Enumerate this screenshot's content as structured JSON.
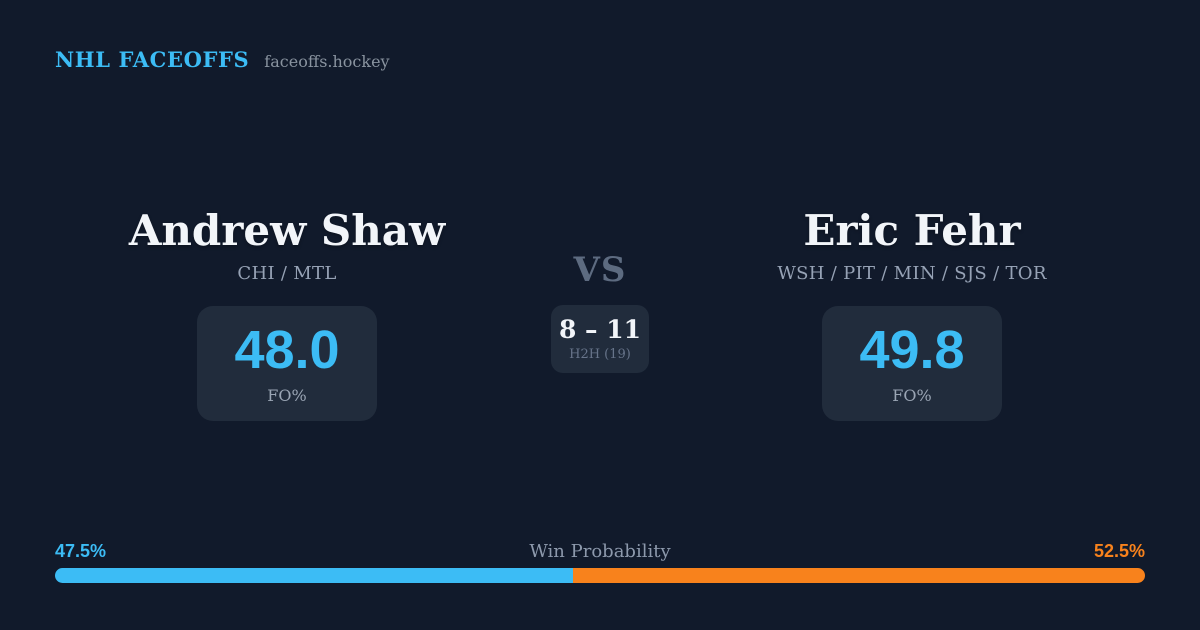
{
  "header": {
    "brand": "NHL FACEOFFS",
    "site": "faceoffs.hockey",
    "brand_color": "#3cbcf5"
  },
  "matchup": {
    "vs": "VS",
    "h2h": {
      "score": "8 – 11",
      "label": "H2H (19)"
    },
    "player_left": {
      "name": "Andrew Shaw",
      "teams": "CHI / MTL",
      "fo_pct": "48.0",
      "fo_label": "FO%"
    },
    "player_right": {
      "name": "Eric Fehr",
      "teams": "WSH / PIT / MIN / SJS / TOR",
      "fo_pct": "49.8",
      "fo_label": "FO%"
    }
  },
  "win_probability": {
    "label": "Win Probability",
    "left": {
      "text": "47.5%",
      "value": 47.5,
      "color": "#3cbcf5"
    },
    "right": {
      "text": "52.5%",
      "value": 52.5,
      "color": "#f8821c"
    }
  },
  "chart_data": {
    "type": "bar",
    "title": "Win Probability",
    "categories": [
      "Andrew Shaw",
      "Eric Fehr"
    ],
    "values": [
      47.5,
      52.5
    ],
    "unit": "%",
    "bar_colors": [
      "#3cbcf5",
      "#f8821c"
    ],
    "orientation": "horizontal-stacked",
    "xlim": [
      0,
      100
    ],
    "annotations": {
      "fo_pct": {
        "Andrew Shaw": 48.0,
        "Eric Fehr": 49.8
      },
      "h2h_score": "8 – 11",
      "h2h_faceoffs": 19
    }
  }
}
